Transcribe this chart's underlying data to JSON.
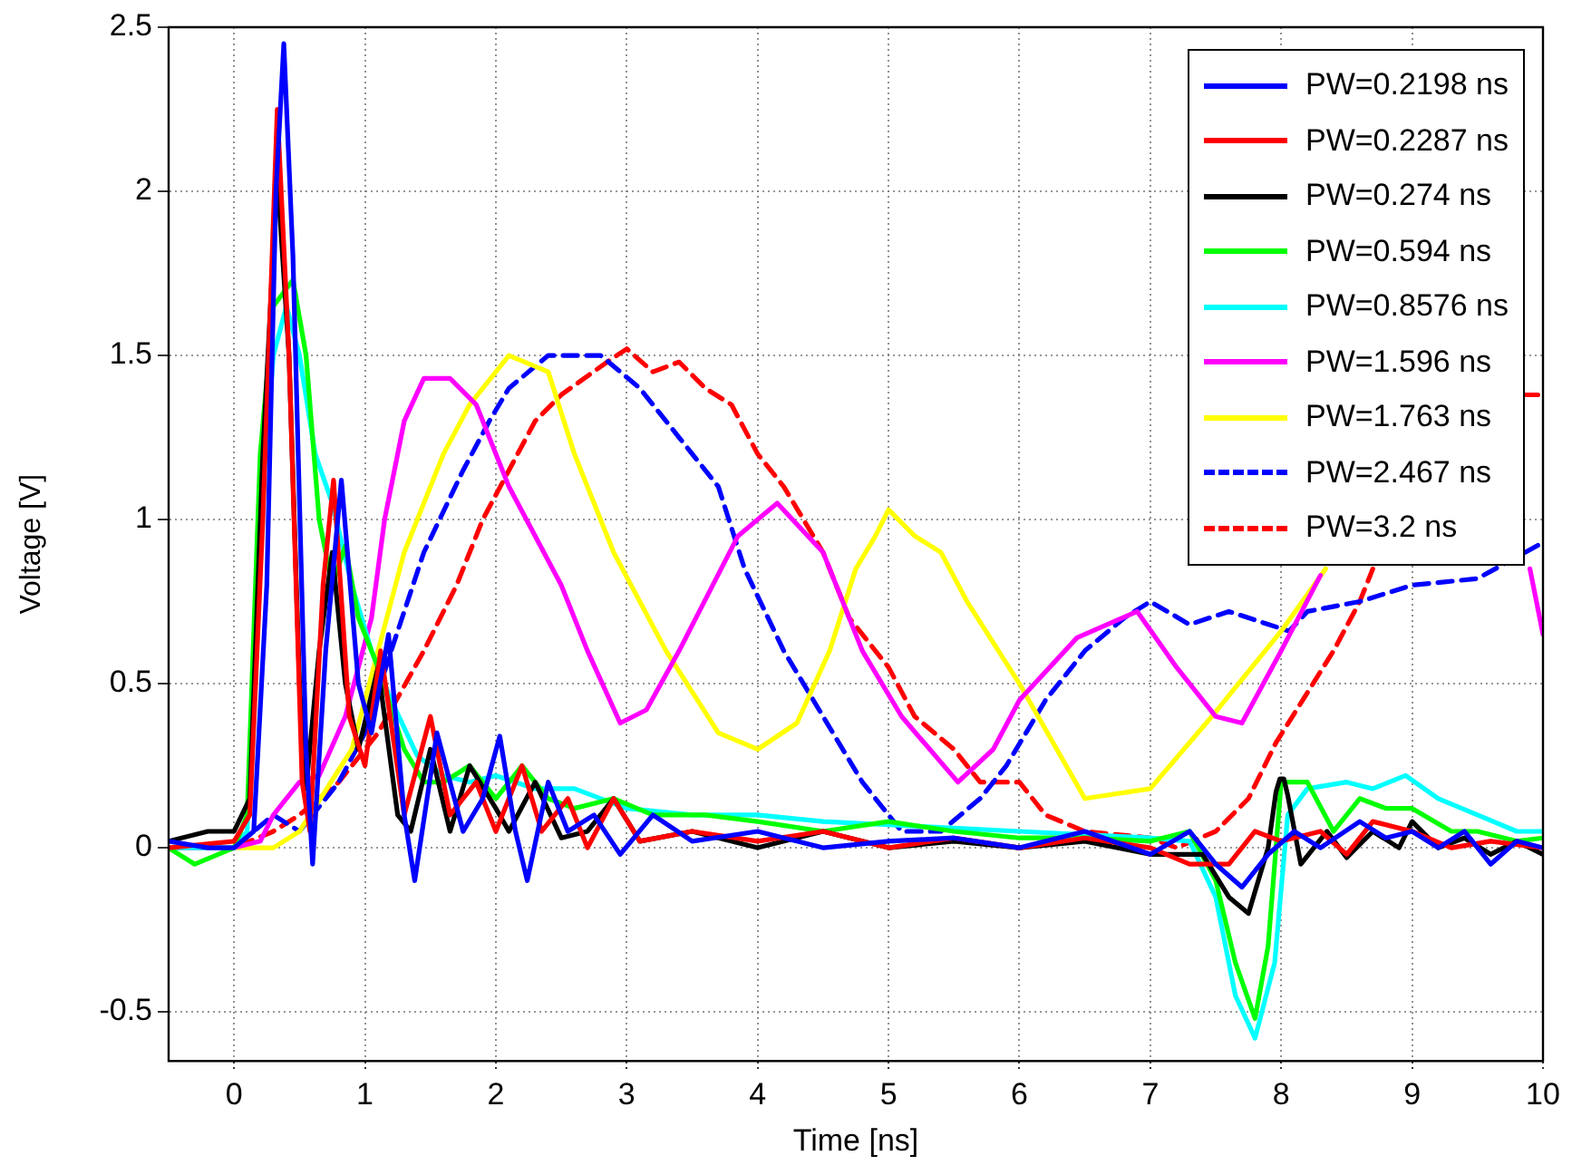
{
  "chart_data": {
    "type": "line",
    "xlabel": "Time [ns]",
    "ylabel": "Voltage [V]",
    "xlim": [
      -0.5,
      10
    ],
    "ylim": [
      -0.65,
      2.5
    ],
    "xticks": [
      0,
      1,
      2,
      3,
      4,
      5,
      6,
      7,
      8,
      9,
      10
    ],
    "yticks": [
      -0.5,
      0,
      0.5,
      1,
      1.5,
      2,
      2.5
    ],
    "grid": true,
    "legend": "top right",
    "marker": "none",
    "line_style": "solid",
    "series": [
      {
        "name": "PW=0.2198 ns",
        "color": "#0000ff",
        "x": [
          -0.5,
          -0.2,
          0,
          0.15,
          0.25,
          0.32,
          0.38,
          0.45,
          0.55,
          0.6,
          0.7,
          0.82,
          0.95,
          1.05,
          1.18,
          1.3,
          1.38,
          1.55,
          1.75,
          1.9,
          2.03,
          2.15,
          2.24,
          2.4,
          2.55,
          2.75,
          2.95,
          3.2,
          3.5,
          4,
          4.5,
          5,
          5.5,
          6,
          6.5,
          7,
          7.3,
          7.5,
          7.7,
          7.9,
          8.1,
          8.3,
          8.6,
          8.8,
          9,
          9.2,
          9.4,
          9.6,
          9.8,
          10
        ],
        "values": [
          0.02,
          0,
          0,
          0.05,
          0.8,
          2,
          2.45,
          1.8,
          0.3,
          -0.05,
          0.6,
          1.12,
          0.5,
          0.35,
          0.65,
          0.1,
          -0.1,
          0.35,
          0.05,
          0.15,
          0.34,
          0.05,
          -0.1,
          0.2,
          0.05,
          0.1,
          -0.02,
          0.1,
          0.02,
          0.05,
          0,
          0.02,
          0.03,
          0,
          0.05,
          -0.02,
          0.05,
          -0.05,
          -0.12,
          -0.02,
          0.05,
          0,
          0.08,
          0.03,
          0.05,
          0,
          0.05,
          -0.05,
          0.02,
          0
        ]
      },
      {
        "name": "PW=0.2287 ns",
        "color": "#ff0000",
        "x": [
          -0.5,
          0,
          0.12,
          0.22,
          0.33,
          0.42,
          0.52,
          0.58,
          0.68,
          0.76,
          0.88,
          1,
          1.12,
          1.3,
          1.5,
          1.65,
          1.85,
          2,
          2.2,
          2.35,
          2.55,
          2.7,
          2.9,
          3.1,
          3.5,
          4,
          4.5,
          5,
          5.5,
          6,
          6.5,
          7,
          7.3,
          7.6,
          7.8,
          8,
          8.3,
          8.5,
          8.7,
          9,
          9.3,
          9.6,
          10
        ],
        "values": [
          0,
          0.02,
          0.1,
          1,
          2.25,
          1.5,
          0.2,
          0.05,
          0.8,
          1.12,
          0.4,
          0.25,
          0.6,
          0.1,
          0.4,
          0.1,
          0.2,
          0.05,
          0.25,
          0.05,
          0.15,
          0,
          0.15,
          0.02,
          0.05,
          0.02,
          0.05,
          0,
          0.03,
          0,
          0.03,
          0,
          -0.05,
          -0.05,
          0.05,
          0.02,
          0.05,
          -0.02,
          0.08,
          0.05,
          0,
          0.02,
          0
        ]
      },
      {
        "name": "PW=0.274 ns",
        "color": "#000000",
        "x": [
          -0.5,
          -0.2,
          0,
          0.12,
          0.22,
          0.33,
          0.42,
          0.5,
          0.55,
          0.65,
          0.75,
          0.85,
          0.95,
          1.1,
          1.25,
          1.35,
          1.5,
          1.65,
          1.8,
          2,
          2.1,
          2.3,
          2.5,
          2.7,
          2.9,
          3.1,
          3.5,
          4,
          4.5,
          5,
          5.5,
          6,
          6.5,
          7,
          7.4,
          7.6,
          7.75,
          7.9,
          7.96,
          7.99,
          8.02,
          8.05,
          8.15,
          8.35,
          8.5,
          8.7,
          8.9,
          9,
          9.2,
          9.4,
          9.6,
          9.8,
          10
        ],
        "values": [
          0.02,
          0.05,
          0.05,
          0.15,
          1.2,
          2.05,
          1.5,
          0.5,
          0.18,
          0.6,
          0.9,
          0.5,
          0.3,
          0.55,
          0.1,
          0.05,
          0.3,
          0.05,
          0.25,
          0.12,
          0.05,
          0.2,
          0.03,
          0.05,
          0.15,
          0.02,
          0.05,
          0,
          0.05,
          0,
          0.02,
          0,
          0.02,
          -0.02,
          -0.02,
          -0.15,
          -0.2,
          0,
          0.17,
          0.21,
          0.21,
          0.16,
          -0.05,
          0.05,
          -0.03,
          0.05,
          0,
          0.08,
          0,
          0.03,
          -0.02,
          0.02,
          -0.02
        ]
      },
      {
        "name": "PW=0.594 ns",
        "color": "#00ff00",
        "x": [
          -0.5,
          -0.3,
          0,
          0.1,
          0.2,
          0.3,
          0.45,
          0.55,
          0.65,
          0.75,
          0.85,
          0.95,
          1.1,
          1.3,
          1.45,
          1.6,
          1.8,
          2,
          2.2,
          2.4,
          2.6,
          2.9,
          3.2,
          3.6,
          4,
          4.5,
          5,
          5.5,
          6,
          6.5,
          7,
          7.3,
          7.5,
          7.65,
          7.8,
          7.9,
          8,
          8.2,
          8.4,
          8.6,
          8.8,
          9,
          9.3,
          9.5,
          9.8,
          10
        ],
        "values": [
          0,
          -0.05,
          0,
          0.1,
          1.2,
          1.65,
          1.73,
          1.5,
          1,
          0.8,
          0.92,
          0.7,
          0.55,
          0.3,
          0.2,
          0.2,
          0.25,
          0.15,
          0.25,
          0.15,
          0.12,
          0.15,
          0.1,
          0.1,
          0.08,
          0.05,
          0.08,
          0.05,
          0.03,
          0.03,
          0.02,
          0.05,
          -0.1,
          -0.35,
          -0.52,
          -0.3,
          0.2,
          0.2,
          0.05,
          0.15,
          0.12,
          0.12,
          0.05,
          0.05,
          0.02,
          0.03
        ]
      },
      {
        "name": "PW=0.8576 ns",
        "color": "#00ffff",
        "x": [
          -0.5,
          0,
          0.1,
          0.2,
          0.3,
          0.4,
          0.5,
          0.62,
          0.75,
          0.9,
          1.05,
          1.2,
          1.4,
          1.6,
          1.8,
          2,
          2.3,
          2.6,
          3,
          3.5,
          4,
          4.5,
          5,
          5.5,
          6,
          6.5,
          7,
          7.3,
          7.5,
          7.65,
          7.8,
          7.95,
          8.05,
          8.2,
          8.5,
          8.7,
          8.95,
          9.2,
          9.5,
          9.8,
          10
        ],
        "values": [
          0,
          0,
          0.05,
          1,
          1.5,
          1.65,
          1.5,
          1.2,
          1.05,
          0.8,
          0.6,
          0.45,
          0.28,
          0.22,
          0.2,
          0.22,
          0.18,
          0.18,
          0.12,
          0.1,
          0.1,
          0.08,
          0.07,
          0.06,
          0.05,
          0.04,
          0.03,
          0.02,
          -0.15,
          -0.45,
          -0.58,
          -0.35,
          0.1,
          0.18,
          0.2,
          0.18,
          0.22,
          0.15,
          0.1,
          0.05,
          0.05
        ]
      },
      {
        "name": "PW=1.596 ns",
        "color": "#ff00ff",
        "x": [
          -0.5,
          0,
          0.2,
          0.3,
          0.5,
          0.65,
          0.85,
          1.05,
          1.15,
          1.3,
          1.45,
          1.65,
          1.85,
          2.1,
          2.5,
          2.7,
          2.95,
          3.15,
          3.4,
          3.85,
          4,
          4.15,
          4.5,
          4.8,
          5.1,
          5.53,
          5.8,
          6,
          6.44,
          6.9,
          7.2,
          7.5,
          7.7,
          8,
          8.3,
          8.5,
          9.9,
          10
        ],
        "values": [
          0,
          0,
          0.02,
          0.1,
          0.2,
          0.22,
          0.4,
          0.7,
          1,
          1.3,
          1.43,
          1.43,
          1.35,
          1.1,
          0.8,
          0.6,
          0.38,
          0.42,
          0.6,
          0.95,
          1,
          1.05,
          0.9,
          0.6,
          0.4,
          0.2,
          0.3,
          0.45,
          0.64,
          0.72,
          0.55,
          0.4,
          0.38,
          0.6,
          0.83,
          null,
          0.85,
          0.65
        ]
      },
      {
        "name": "PW=1.763 ns",
        "color": "#ffff00",
        "x": [
          -0.5,
          0,
          0.3,
          0.5,
          0.9,
          1.1,
          1.3,
          1.6,
          1.8,
          2,
          2.1,
          2.4,
          2.6,
          2.9,
          3.3,
          3.7,
          4,
          4.3,
          4.55,
          4.75,
          4.9,
          5,
          5.2,
          5.4,
          5.6,
          6,
          6.5,
          7,
          7.47,
          8,
          8.34
        ],
        "values": [
          0,
          0,
          0,
          0.05,
          0.3,
          0.6,
          0.9,
          1.2,
          1.35,
          1.45,
          1.5,
          1.45,
          1.2,
          0.9,
          0.6,
          0.35,
          0.3,
          0.38,
          0.6,
          0.85,
          0.95,
          1.03,
          0.95,
          0.9,
          0.75,
          0.5,
          0.15,
          0.18,
          0.4,
          0.66,
          0.85
        ]
      },
      {
        "name": "PW=2.467 ns",
        "color": "#0000ff",
        "line_style": "dashed",
        "x": [
          -0.5,
          0,
          0.3,
          0.5,
          0.8,
          1,
          1.2,
          1.45,
          1.75,
          1.95,
          2.1,
          2.4,
          2.8,
          3.1,
          3.4,
          3.7,
          3.9,
          4.2,
          4.5,
          4.8,
          5.1,
          5.4,
          5.7,
          5.9,
          6.2,
          6.5,
          6.8,
          7,
          7.3,
          7.6,
          8.06,
          8.2,
          8.6,
          9,
          9.5,
          10
        ],
        "values": [
          0,
          0,
          0.1,
          0.05,
          0.2,
          0.35,
          0.6,
          0.9,
          1.15,
          1.3,
          1.4,
          1.5,
          1.5,
          1.4,
          1.25,
          1.1,
          0.85,
          0.6,
          0.4,
          0.2,
          0.05,
          0.05,
          0.15,
          0.25,
          0.45,
          0.6,
          0.7,
          0.75,
          0.68,
          0.72,
          0.66,
          0.72,
          0.75,
          0.8,
          0.82,
          0.93
        ]
      },
      {
        "name": "PW=3.2 ns",
        "color": "#ff0000",
        "line_style": "dashed",
        "x": [
          -0.5,
          0,
          0.3,
          0.5,
          0.8,
          1.1,
          1.45,
          1.7,
          1.9,
          2.1,
          2.3,
          2.5,
          2.85,
          3,
          3.2,
          3.4,
          3.6,
          3.8,
          4,
          4.2,
          4.5,
          4.7,
          5,
          5.2,
          5.5,
          5.7,
          6,
          6.2,
          6.5,
          7,
          7.2,
          7.5,
          7.75,
          7.96,
          8.4,
          8.6,
          8.7,
          9,
          9.85,
          10
        ],
        "values": [
          0,
          0,
          0.05,
          0.1,
          0.2,
          0.35,
          0.6,
          0.8,
          1,
          1.15,
          1.3,
          1.38,
          1.48,
          1.52,
          1.45,
          1.48,
          1.4,
          1.35,
          1.2,
          1.1,
          0.9,
          0.7,
          0.55,
          0.4,
          0.3,
          0.2,
          0.2,
          0.1,
          0.05,
          0.03,
          0,
          0.05,
          0.15,
          0.32,
          0.6,
          0.75,
          0.85,
          null,
          1.38,
          1.38
        ]
      }
    ]
  }
}
